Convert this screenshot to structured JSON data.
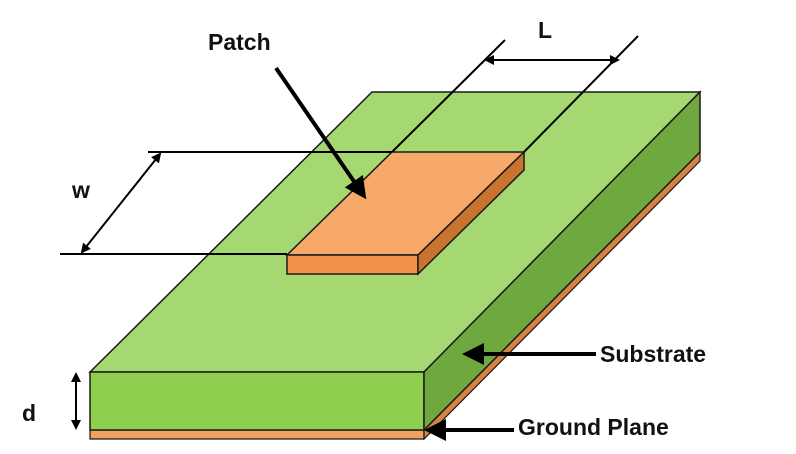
{
  "labels": {
    "patch": "Patch",
    "length": "L",
    "width": "w",
    "substrate": "Substrate",
    "ground_plane": "Ground Plane",
    "thickness": "d"
  },
  "colors": {
    "substrate_top": "#a6d872",
    "substrate_front": "#8fcf4f",
    "substrate_side": "#6ea83f",
    "ground_plane": "#f2a25e",
    "ground_plane_side": "#d9823f",
    "patch_top": "#f7a96a",
    "patch_front": "#f1914a",
    "patch_side": "#c8742f",
    "outline": "#1a1a1a"
  }
}
